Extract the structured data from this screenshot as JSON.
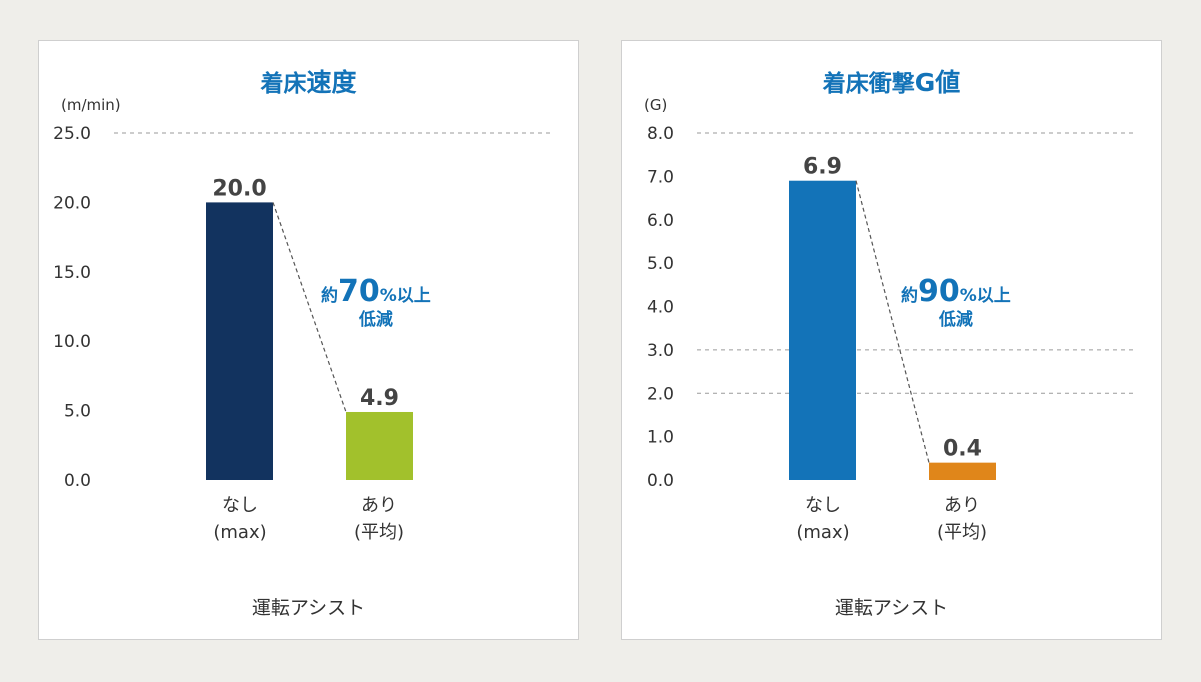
{
  "chart_data": [
    {
      "type": "bar",
      "title_part1": "着床",
      "title_part2": "速度",
      "ylabel": "(m/min)",
      "xlabel": "運転アシスト",
      "ylim": [
        0,
        25
      ],
      "yticks": [
        "0.0",
        "5.0",
        "10.0",
        "15.0",
        "20.0",
        "25.0"
      ],
      "dashed_gridlines": [
        25.0
      ],
      "categories": [
        {
          "line1": "なし",
          "line2": "(max)"
        },
        {
          "line1": "あり",
          "line2": "(平均)"
        }
      ],
      "values": [
        20.0,
        4.9
      ],
      "value_labels": [
        "20.0",
        "4.9"
      ],
      "colors": [
        "#12335f",
        "#a2c12c"
      ],
      "annotation": {
        "prefix": "約",
        "number": "70",
        "suffix": "%以上",
        "line2": "低減"
      }
    },
    {
      "type": "bar",
      "title_part1": "着床衝撃",
      "title_part2": "G値",
      "ylabel": "(G)",
      "xlabel": "運転アシスト",
      "ylim": [
        0,
        8
      ],
      "yticks": [
        "0.0",
        "1.0",
        "2.0",
        "3.0",
        "4.0",
        "5.0",
        "6.0",
        "7.0",
        "8.0"
      ],
      "dashed_gridlines": [
        2.0,
        3.0,
        8.0
      ],
      "categories": [
        {
          "line1": "なし",
          "line2": "(max)"
        },
        {
          "line1": "あり",
          "line2": "(平均)"
        }
      ],
      "values": [
        6.9,
        0.4
      ],
      "value_labels": [
        "6.9",
        "0.4"
      ],
      "colors": [
        "#1373b8",
        "#e0861a"
      ],
      "annotation": {
        "prefix": "約",
        "number": "90",
        "suffix": "%以上",
        "line2": "低減"
      }
    }
  ]
}
